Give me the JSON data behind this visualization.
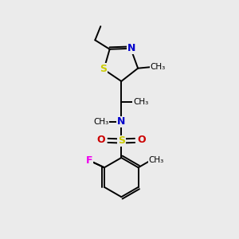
{
  "background_color": "#ebebeb",
  "bond_color": "#000000",
  "s_color": "#cccc00",
  "n_color": "#0000cc",
  "o_color": "#cc0000",
  "f_color": "#ee00ee",
  "sulfonyl_s_color": "#cccc00",
  "lw": 1.4,
  "figsize": [
    3.0,
    3.0
  ],
  "dpi": 100,
  "xlim": [
    0,
    10
  ],
  "ylim": [
    0,
    10
  ]
}
